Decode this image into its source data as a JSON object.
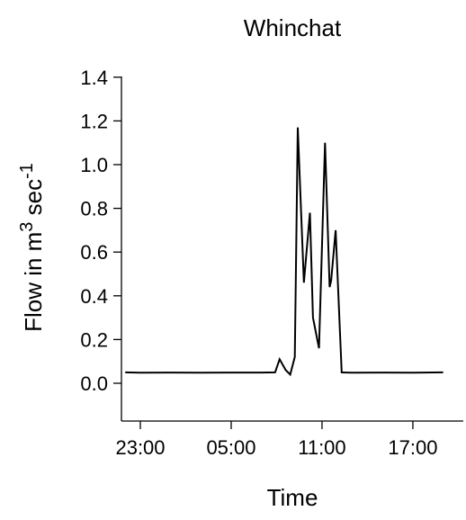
{
  "chart_data": {
    "type": "line",
    "title": "Whinchat",
    "xlabel": "Time",
    "ylabel": "Flow in m",
    "ylabel_sup": "3",
    "ylabel_unit": " sec",
    "ylabel_unit_sup": "-1",
    "xlim": [
      -2.5,
      21.5
    ],
    "ylim": [
      -0.18,
      1.4
    ],
    "x_ticks": [
      {
        "value": 0,
        "label": "23:00"
      },
      {
        "value": 6,
        "label": "05:00"
      },
      {
        "value": 12,
        "label": "11:00"
      },
      {
        "value": 18,
        "label": "17:00"
      }
    ],
    "y_ticks": [
      {
        "value": 0.0,
        "label": "0.0"
      },
      {
        "value": 0.2,
        "label": "0.2"
      },
      {
        "value": 0.4,
        "label": "0.4"
      },
      {
        "value": 0.6,
        "label": "0.6"
      },
      {
        "value": 0.8,
        "label": "0.8"
      },
      {
        "value": 1.0,
        "label": "1.0"
      },
      {
        "value": 1.2,
        "label": "1.2"
      },
      {
        "value": 1.4,
        "label": "1.4"
      }
    ],
    "grid": false,
    "series": [
      {
        "color": "#000000",
        "x": [
          -1.0,
          0,
          2,
          4,
          6,
          8,
          8.9,
          9.2,
          9.6,
          9.9,
          10.2,
          10.4,
          10.8,
          11.2,
          11.4,
          11.8,
          12.2,
          12.5,
          12.6,
          12.9,
          13.3,
          14,
          16,
          18,
          20.0
        ],
        "y": [
          0.05,
          0.048,
          0.049,
          0.048,
          0.049,
          0.049,
          0.05,
          0.11,
          0.06,
          0.04,
          0.12,
          1.17,
          0.46,
          0.78,
          0.3,
          0.16,
          1.1,
          0.44,
          0.47,
          0.7,
          0.05,
          0.048,
          0.049,
          0.048,
          0.05
        ]
      }
    ]
  }
}
